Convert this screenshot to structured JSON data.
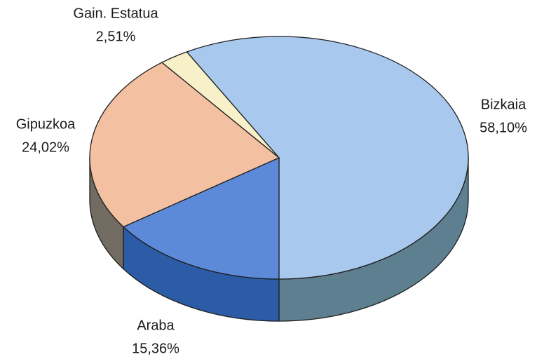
{
  "chart_data": {
    "type": "pie3d",
    "categories": [
      "Bizkaia",
      "Araba",
      "Gipuzkoa",
      "Gain. Estatua"
    ],
    "values": [
      58.1,
      15.36,
      24.02,
      2.51
    ],
    "value_labels": [
      "58,10%",
      "15,36%",
      "24,02%",
      "2,51%"
    ],
    "colors": [
      "#a9c8ee",
      "#5c8ad8",
      "#f4c0a2",
      "#f8f0c8"
    ],
    "side_colors": [
      "#5d7f8f",
      "#2c5ca6",
      "#716b62",
      "#b0a680"
    ]
  }
}
